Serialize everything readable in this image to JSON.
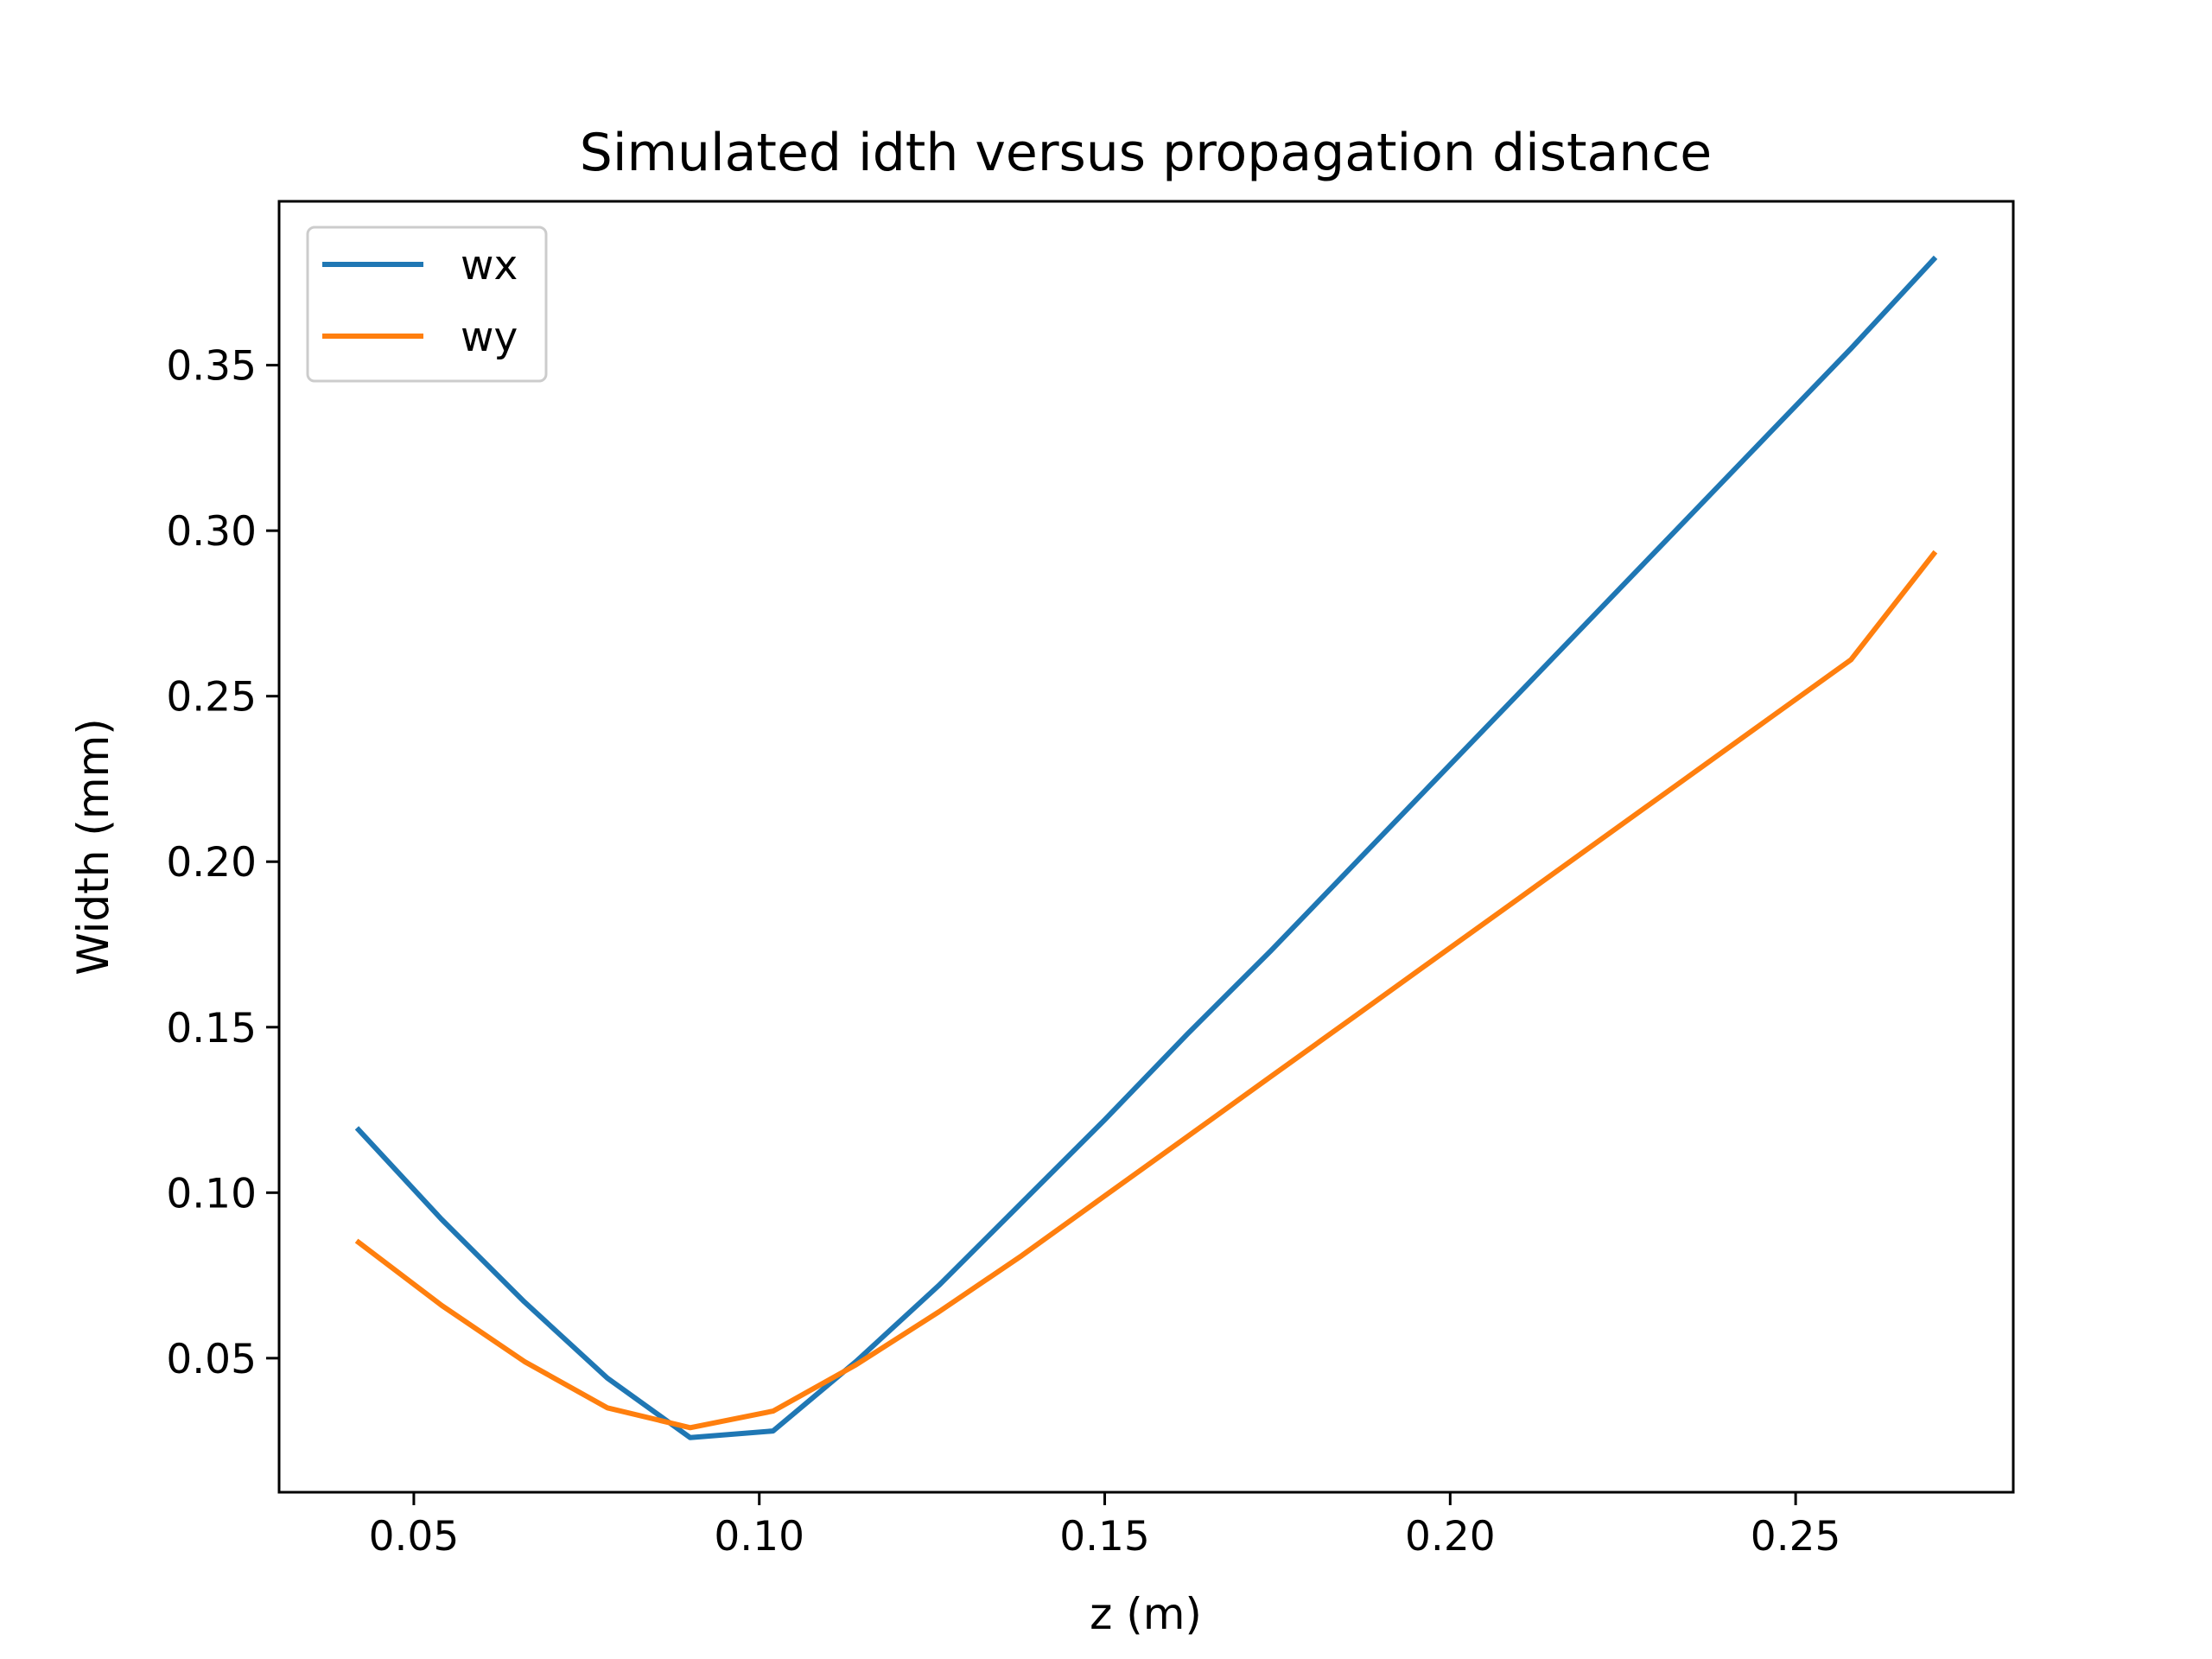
{
  "chart_data": {
    "type": "line",
    "title": "Simulated idth versus propagation distance",
    "xlabel": "z (m)",
    "ylabel": "Width (mm)",
    "xlim": [
      0.0305,
      0.2815
    ],
    "ylim": [
      0.0095,
      0.3995
    ],
    "xticks": [
      0.05,
      0.1,
      0.15,
      0.2,
      0.25
    ],
    "xtick_labels": [
      "0.05",
      "0.10",
      "0.15",
      "0.20",
      "0.25"
    ],
    "yticks": [
      0.05,
      0.1,
      0.15,
      0.2,
      0.25,
      0.3,
      0.35
    ],
    "ytick_labels": [
      "0.05",
      "0.10",
      "0.15",
      "0.20",
      "0.25",
      "0.30",
      "0.35"
    ],
    "grid": false,
    "legend": {
      "position": "top-left"
    },
    "series": [
      {
        "name": "wx",
        "color": "#1f77b4",
        "x": [
          0.042,
          0.054,
          0.066,
          0.078,
          0.09,
          0.102,
          0.114,
          0.126,
          0.138,
          0.15,
          0.162,
          0.174,
          0.186,
          0.198,
          0.21,
          0.222,
          0.234,
          0.246,
          0.258,
          0.27
        ],
        "y": [
          0.119,
          0.092,
          0.067,
          0.044,
          0.026,
          0.028,
          0.049,
          0.072,
          0.097,
          0.122,
          0.148,
          0.173,
          0.199,
          0.225,
          0.251,
          0.277,
          0.303,
          0.329,
          0.355,
          0.382
        ]
      },
      {
        "name": "wy",
        "color": "#ff7f0e",
        "x": [
          0.042,
          0.054,
          0.066,
          0.078,
          0.09,
          0.102,
          0.114,
          0.126,
          0.138,
          0.15,
          0.162,
          0.174,
          0.186,
          0.198,
          0.21,
          0.222,
          0.234,
          0.246,
          0.258,
          0.27
        ],
        "y": [
          0.085,
          0.066,
          0.049,
          0.035,
          0.029,
          0.034,
          0.048,
          0.064,
          0.081,
          0.099,
          0.117,
          0.135,
          0.153,
          0.171,
          0.189,
          0.207,
          0.225,
          0.243,
          0.261,
          0.293
        ]
      }
    ]
  }
}
